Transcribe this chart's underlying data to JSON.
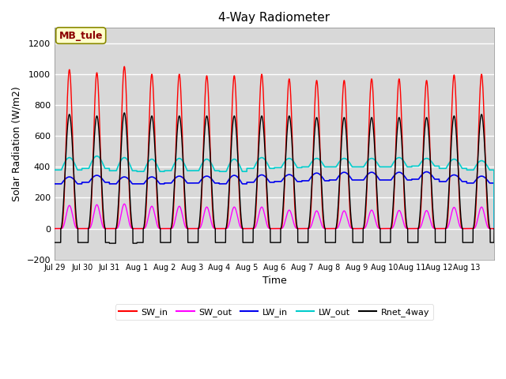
{
  "title": "4-Way Radiometer",
  "xlabel": "Time",
  "ylabel": "Solar Radiation (W/m2)",
  "ylim": [
    -200,
    1300
  ],
  "yticks": [
    -200,
    0,
    200,
    400,
    600,
    800,
    1000,
    1200
  ],
  "fig_bg_color": "#ffffff",
  "plot_bg_color": "#d8d8d8",
  "annotation_text": "MB_tule",
  "annotation_bg": "#ffffcc",
  "annotation_edge": "#888800",
  "annotation_text_color": "#8b0000",
  "legend_entries": [
    "SW_in",
    "SW_out",
    "LW_in",
    "LW_out",
    "Rnet_4way"
  ],
  "line_colors": {
    "SW_in": "#ff0000",
    "SW_out": "#ff00ff",
    "LW_in": "#0000ee",
    "LW_out": "#00cccc",
    "Rnet_4way": "#000000"
  },
  "n_days": 16,
  "xtick_labels": [
    "Jul 29",
    "Jul 30",
    "Jul 31",
    "Aug 1",
    "Aug 2",
    "Aug 3",
    "Aug 4",
    "Aug 5",
    "Aug 6",
    "Aug 7",
    "Aug 8",
    "Aug 9",
    "Aug 10",
    "Aug 11",
    "Aug 12",
    "Aug 13"
  ],
  "SW_in_peak": [
    1030,
    1010,
    1050,
    1000,
    1000,
    990,
    990,
    1000,
    970,
    960,
    960,
    970,
    970,
    960,
    995,
    1000
  ],
  "SW_out_peak": [
    150,
    155,
    160,
    145,
    145,
    140,
    140,
    140,
    120,
    115,
    115,
    120,
    118,
    117,
    138,
    140
  ],
  "LW_in_base": [
    290,
    300,
    290,
    290,
    295,
    295,
    290,
    300,
    305,
    310,
    315,
    315,
    315,
    320,
    305,
    295
  ],
  "LW_in_peak": [
    335,
    345,
    335,
    335,
    340,
    340,
    345,
    348,
    350,
    360,
    365,
    365,
    365,
    368,
    348,
    340
  ],
  "LW_out_base": [
    380,
    390,
    375,
    370,
    375,
    375,
    370,
    390,
    395,
    400,
    400,
    400,
    400,
    405,
    390,
    380
  ],
  "LW_out_peak": [
    460,
    470,
    460,
    450,
    455,
    450,
    450,
    460,
    455,
    455,
    455,
    455,
    460,
    455,
    450,
    440
  ],
  "Rnet_peak": [
    740,
    730,
    750,
    730,
    730,
    730,
    730,
    730,
    730,
    720,
    720,
    720,
    720,
    720,
    730,
    740
  ],
  "Rnet_night": [
    -90,
    -90,
    -95,
    -90,
    -90,
    -90,
    -90,
    -90,
    -90,
    -90,
    -90,
    -90,
    -90,
    -90,
    -90,
    -90
  ]
}
